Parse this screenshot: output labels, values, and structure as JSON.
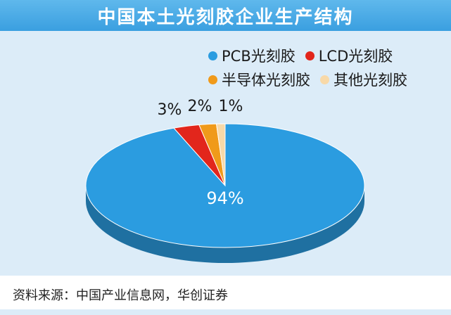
{
  "title": "中国本土光刻胶企业生产结构",
  "source": "资料来源：中国产业信息网，华创证券",
  "colors": {
    "background": "#dcecf8",
    "title_bar": "#3a9fe0",
    "pcb": "#2b9ce0",
    "lcd": "#e2261c",
    "semiconductor": "#f09a1a",
    "other": "#f8d9a8"
  },
  "chart_data": {
    "type": "pie",
    "title": "中国本土光刻胶企业生产结构",
    "categories": [
      "PCB光刻胶",
      "LCD光刻胶",
      "半导体光刻胶",
      "其他光刻胶"
    ],
    "values": [
      94,
      3,
      2,
      1
    ],
    "labels": [
      "94%",
      "3%",
      "2%",
      "1%"
    ],
    "unit": "%",
    "legend_position": "top-right",
    "style": "3d-tilted"
  }
}
